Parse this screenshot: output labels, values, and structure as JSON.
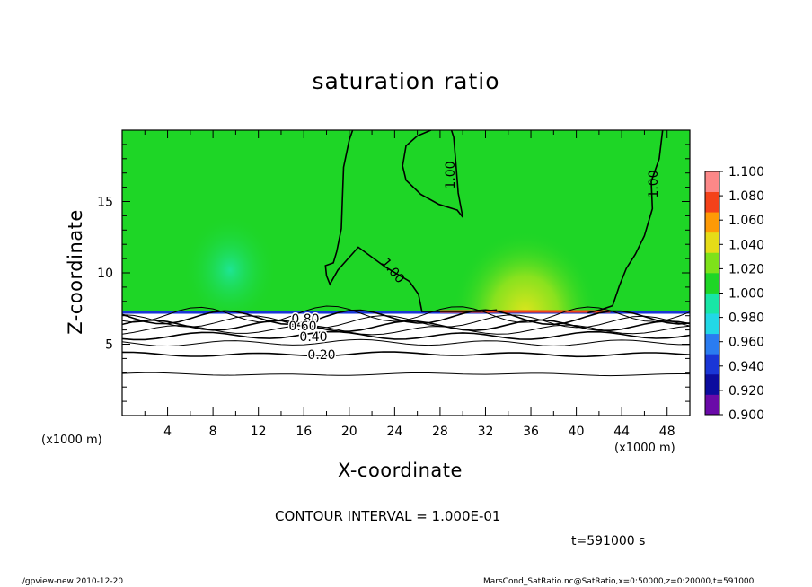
{
  "chart_data": {
    "type": "heatmap",
    "title": "saturation ratio",
    "xlabel": "X-coordinate",
    "ylabel": "Z-coordinate",
    "x_unit_left": "(x1000 m)",
    "x_unit_right": "(x1000 m)",
    "xlim": [
      0,
      50
    ],
    "ylim": [
      0,
      20
    ],
    "x_ticks": [
      4,
      8,
      12,
      16,
      20,
      24,
      28,
      32,
      36,
      40,
      44,
      48
    ],
    "y_ticks": [
      5,
      10,
      15
    ],
    "colorbar": {
      "levels": [
        0.9,
        0.92,
        0.94,
        0.96,
        0.98,
        1.0,
        1.02,
        1.04,
        1.06,
        1.08,
        1.1
      ],
      "labels": [
        "0.900",
        "0.920",
        "0.940",
        "0.960",
        "0.980",
        "1.000",
        "1.020",
        "1.040",
        "1.060",
        "1.080",
        "1.100"
      ],
      "colors": [
        "#6a0aa8",
        "#0c0c9e",
        "#1a36d6",
        "#2a7cf0",
        "#22d8e6",
        "#18e6a6",
        "#1ed626",
        "#7ee21a",
        "#e6dc18",
        "#fe9a06",
        "#f4421a",
        "#fc8888"
      ]
    },
    "contour_labels": [
      "1.00",
      "1.00",
      "1.00",
      "0.80",
      "0.60",
      "0.40",
      "0.20"
    ],
    "contour_levels": [
      0.1,
      0.2,
      0.3,
      0.4,
      0.5,
      0.6,
      0.7,
      0.8,
      0.9
    ],
    "contour_heights_z": [
      2.9,
      4.3,
      5.1,
      5.6,
      6.0,
      6.3,
      6.6,
      6.9,
      7.1
    ],
    "saturation_boundary_z": 7.2,
    "contour_interval": "CONTOUR INTERVAL = 1.000E-01",
    "time": "t=591000 s"
  },
  "footer": {
    "left": "./gpview-new   2010-12-20",
    "right": "MarsCond_SatRatio.nc@SatRatio,x=0:50000,z=0:20000,t=591000"
  }
}
